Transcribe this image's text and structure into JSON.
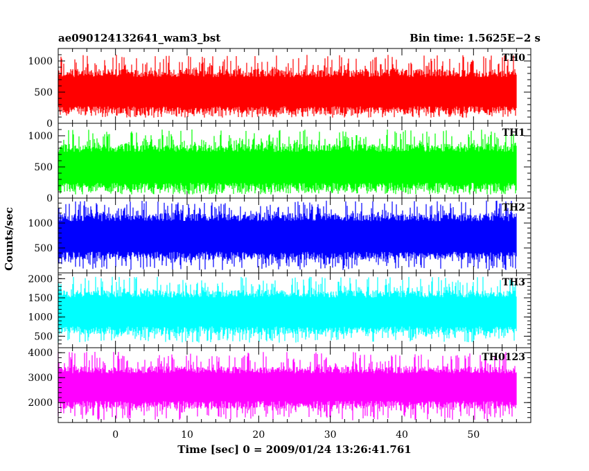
{
  "chart_data": {
    "type": "line",
    "title_left": "ae090124132641_wam3_bst",
    "title_right": "Bin time: 1.5625E−2 s",
    "xlabel": "Time [sec] 0 = 2009/01/24 13:26:41.761",
    "ylabel": "Counts/sec",
    "xlim": [
      -8,
      58
    ],
    "x_ticks": [
      0,
      10,
      20,
      30,
      40,
      50
    ],
    "x_range_data": [
      -8,
      56
    ],
    "grid": false,
    "panels": [
      {
        "name": "TH0",
        "color": "#ff0000",
        "ylim": [
          0,
          1200
        ],
        "yticks": [
          0,
          500,
          1000
        ],
        "mean": 500,
        "min": 90,
        "max": 1100,
        "band_low": 150,
        "band_high": 870
      },
      {
        "name": "TH1",
        "color": "#00ff00",
        "ylim": [
          0,
          1200
        ],
        "yticks": [
          0,
          500,
          1000
        ],
        "mean": 500,
        "min": 60,
        "max": 1100,
        "band_low": 110,
        "band_high": 870
      },
      {
        "name": "TH2",
        "color": "#0000ff",
        "ylim": [
          0,
          1500
        ],
        "yticks": [
          500,
          1000
        ],
        "mean": 730,
        "min": 50,
        "max": 1450,
        "band_low": 260,
        "band_high": 1200
      },
      {
        "name": "TH3",
        "color": "#00ffff",
        "ylim": [
          200,
          2150
        ],
        "yticks": [
          500,
          1000,
          1500,
          2000
        ],
        "mean": 1150,
        "min": 330,
        "max": 2050,
        "band_low": 540,
        "band_high": 1700
      },
      {
        "name": "TH0123",
        "color": "#ff00ff",
        "ylim": [
          1200,
          4200
        ],
        "yticks": [
          2000,
          3000,
          4000
        ],
        "mean": 2650,
        "min": 1280,
        "max": 4050,
        "band_low": 1750,
        "band_high": 3450
      }
    ]
  }
}
